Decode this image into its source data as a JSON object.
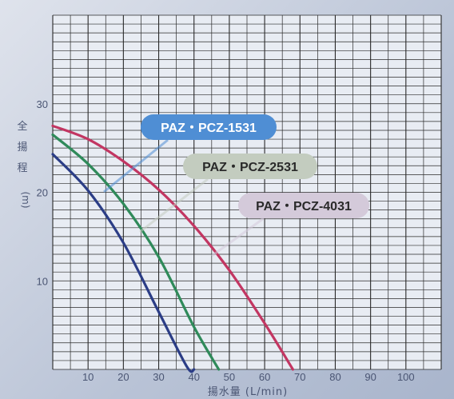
{
  "chart_data": {
    "type": "line",
    "title": "",
    "ylabel": "全揚程 (m)",
    "xlabel": "揚水量 (L/min)",
    "xlim": [
      0,
      110
    ],
    "ylim": [
      0,
      40
    ],
    "x_ticks": [
      "10",
      "20",
      "30",
      "40",
      "50",
      "60",
      "70",
      "80",
      "90",
      "100"
    ],
    "y_ticks": [
      "10",
      "20",
      "30"
    ],
    "grid": true,
    "series": [
      {
        "name": "PAZ・PCZ-1531",
        "color": "#2b3d86",
        "label_bg": "#4f8ed4",
        "label_color": "#ffffff",
        "x": [
          0,
          10,
          20,
          30,
          38,
          40
        ],
        "y": [
          24.3,
          20.2,
          14.3,
          6.5,
          0.3,
          0
        ]
      },
      {
        "name": "PAZ・PCZ-2531",
        "color": "#2f8a5a",
        "label_bg": "#c3ccbf",
        "label_color": "#2a2a2a",
        "x": [
          0,
          10,
          20,
          30,
          40,
          47
        ],
        "y": [
          26.5,
          23.2,
          18.7,
          12.7,
          4.8,
          0
        ]
      },
      {
        "name": "PAZ・PCZ-4031",
        "color": "#c23662",
        "label_bg": "#d4cada",
        "label_color": "#2a2a2a",
        "x": [
          0,
          10,
          20,
          30,
          40,
          50,
          60,
          68
        ],
        "y": [
          27.5,
          26.0,
          23.5,
          20.3,
          16.2,
          11.2,
          5.2,
          0
        ]
      }
    ]
  }
}
